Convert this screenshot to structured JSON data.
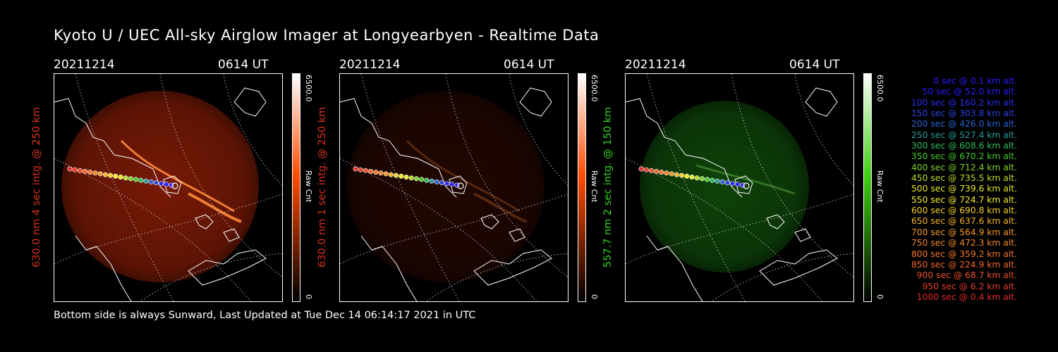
{
  "title": "Kyoto U / UEC All-sky Airglow Imager at Longyearbyen - Realtime Data",
  "panels": [
    {
      "date": "20211214",
      "time": "0614 UT",
      "side_label": "630.0 nm 4 sec intg. @ 250 km",
      "label_color": "#d8311c",
      "colorbar_max": "6500.0",
      "colorbar_unit": "Raw Cnt",
      "colorbar_min": "0",
      "colorbar_color": "#ff4a00",
      "intensity": 0.9
    },
    {
      "date": "20211214",
      "time": "0614 UT",
      "side_label": "630.0 nm 1 sec intg. @ 250 km",
      "label_color": "#d8311c",
      "colorbar_max": "6500.0",
      "colorbar_unit": "Raw Cnt",
      "colorbar_min": "0",
      "colorbar_color": "#ff4a00",
      "intensity": 0.25
    },
    {
      "date": "20211214",
      "time": "0614 UT",
      "side_label": "557.7 nm 2 sec intg. @ 150 km",
      "label_color": "#35d21f",
      "colorbar_max": "6500.0",
      "colorbar_unit": "Raw Cnt",
      "colorbar_min": "0",
      "colorbar_color": "#3fd010",
      "intensity": 0.5
    }
  ],
  "legend": [
    {
      "text": "0 sec @   0.1 km alt.",
      "color": "#2a1cff"
    },
    {
      "text": "50 sec @  52.0 km alt.",
      "color": "#2a1cff"
    },
    {
      "text": "100 sec @ 160.2 km alt.",
      "color": "#2c2cf0"
    },
    {
      "text": "150 sec @ 303.8 km alt.",
      "color": "#2a40e8"
    },
    {
      "text": "200 sec @ 426.0 km alt.",
      "color": "#2a63d6"
    },
    {
      "text": "250 sec @ 527.4 km alt.",
      "color": "#2a9a9a"
    },
    {
      "text": "300 sec @ 608.6 km alt.",
      "color": "#2dbd5a"
    },
    {
      "text": "350 sec @ 670.2 km alt.",
      "color": "#46cd2c"
    },
    {
      "text": "400 sec @ 712.4 km alt.",
      "color": "#7fd42a"
    },
    {
      "text": "450 sec @ 735.5 km alt.",
      "color": "#b6dd2a"
    },
    {
      "text": "500 sec @ 739.6 km alt.",
      "color": "#e7e92a"
    },
    {
      "text": "550 sec @ 724.7 km alt.",
      "color": "#f5ee2a"
    },
    {
      "text": "600 sec @ 690.8 km alt.",
      "color": "#f6d32a"
    },
    {
      "text": "650 sec @ 637.6 km alt.",
      "color": "#f6b42a"
    },
    {
      "text": "700 sec @ 564.9 km alt.",
      "color": "#f59a2a"
    },
    {
      "text": "750 sec @ 472.3 km alt.",
      "color": "#f5872a"
    },
    {
      "text": "800 sec @ 359.2 km alt.",
      "color": "#f5782a"
    },
    {
      "text": "850 sec @ 224.9 km alt.",
      "color": "#f2662a"
    },
    {
      "text": "900 sec @  68.7 km alt.",
      "color": "#ee502a"
    },
    {
      "text": "950 sec @   6.2 km alt.",
      "color": "#ea3d2a"
    },
    {
      "text": "1000 sec @   0.4 km alt.",
      "color": "#e62a2a"
    }
  ],
  "footer": "Bottom side is always Sunward, Last Updated at Tue Dec 14 06:14:17 2021 in UTC"
}
